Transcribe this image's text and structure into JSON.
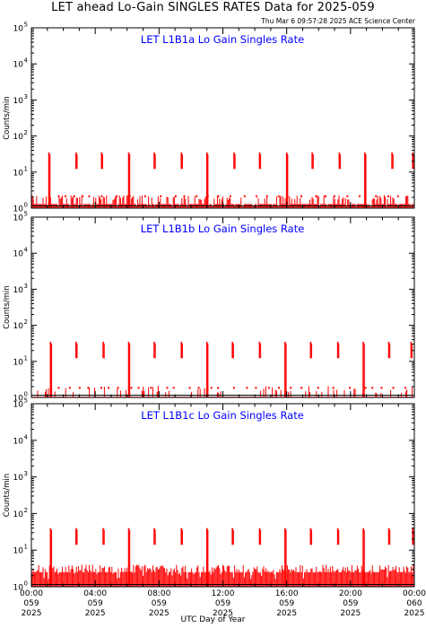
{
  "title": "LET ahead Lo-Gain SINGLES RATES Data for 2025-059",
  "timestamp": "Thu Mar  6 09:57:28 2025 ACE Science Center",
  "colors": {
    "data": "#ff0000",
    "panel_title": "#0000ff",
    "axis": "#000000",
    "baseline": "#000000"
  },
  "chart_data": [
    {
      "type": "line",
      "title": "LET L1B1a Lo Gain Singles Rate",
      "ylabel": "Counts/min",
      "yscale": "log",
      "ylim": [
        1,
        100000
      ],
      "ytick_labels": [
        "10^0",
        "10^1",
        "10^2",
        "10^3",
        "10^4",
        "10^5"
      ],
      "xlim": [
        0,
        24
      ],
      "baseline_level": 1.7,
      "spike_hours": [
        1.1,
        2.8,
        4.4,
        6.1,
        7.7,
        9.4,
        11.0,
        12.7,
        14.3,
        16.0,
        17.6,
        19.3,
        20.9,
        22.6,
        23.9
      ],
      "spike_values": [
        35,
        35,
        35,
        35,
        35,
        35,
        35,
        35,
        35,
        35,
        35,
        35,
        35,
        35,
        35
      ],
      "grid": false
    },
    {
      "type": "line",
      "title": "LET L1B1b Lo Gain Singles Rate",
      "ylabel": "Counts/min",
      "yscale": "log",
      "ylim": [
        1,
        100000
      ],
      "ytick_labels": [
        "10^0",
        "10^1",
        "10^2",
        "10^3",
        "10^4",
        "10^5"
      ],
      "xlim": [
        0,
        24
      ],
      "baseline_level": 1.3,
      "spike_hours": [
        1.2,
        2.8,
        4.5,
        6.1,
        7.7,
        9.4,
        11.0,
        12.6,
        14.3,
        15.9,
        17.5,
        19.2,
        20.8,
        22.4,
        23.8
      ],
      "spike_values": [
        35,
        35,
        35,
        35,
        35,
        35,
        35,
        35,
        35,
        35,
        35,
        35,
        35,
        35,
        35
      ],
      "grid": false
    },
    {
      "type": "line",
      "title": "LET L1B1c Lo Gain Singles Rate",
      "ylabel": "Counts/min",
      "yscale": "log",
      "ylim": [
        1,
        100000
      ],
      "ytick_labels": [
        "10^0",
        "10^1",
        "10^2",
        "10^3",
        "10^4",
        "10^5"
      ],
      "xlim": [
        0,
        24
      ],
      "baseline_level": 2.5,
      "spike_hours": [
        1.2,
        2.8,
        4.5,
        6.1,
        7.7,
        9.4,
        11.0,
        12.6,
        14.3,
        15.9,
        17.5,
        19.2,
        20.8,
        22.4,
        23.9
      ],
      "spike_values": [
        40,
        40,
        40,
        40,
        40,
        40,
        40,
        40,
        40,
        40,
        40,
        40,
        40,
        40,
        40
      ],
      "xlabel": "UTC Day of Year",
      "xtick_labels": [
        [
          "00:00",
          "059",
          "2025"
        ],
        [
          "04:00",
          "059",
          "2025"
        ],
        [
          "08:00",
          "059",
          "2025"
        ],
        [
          "12:00",
          "059",
          "2025"
        ],
        [
          "16:00",
          "059",
          "2025"
        ],
        [
          "20:00",
          "059",
          "2025"
        ],
        [
          "00:00",
          "060",
          "2025"
        ]
      ],
      "grid": false
    }
  ]
}
